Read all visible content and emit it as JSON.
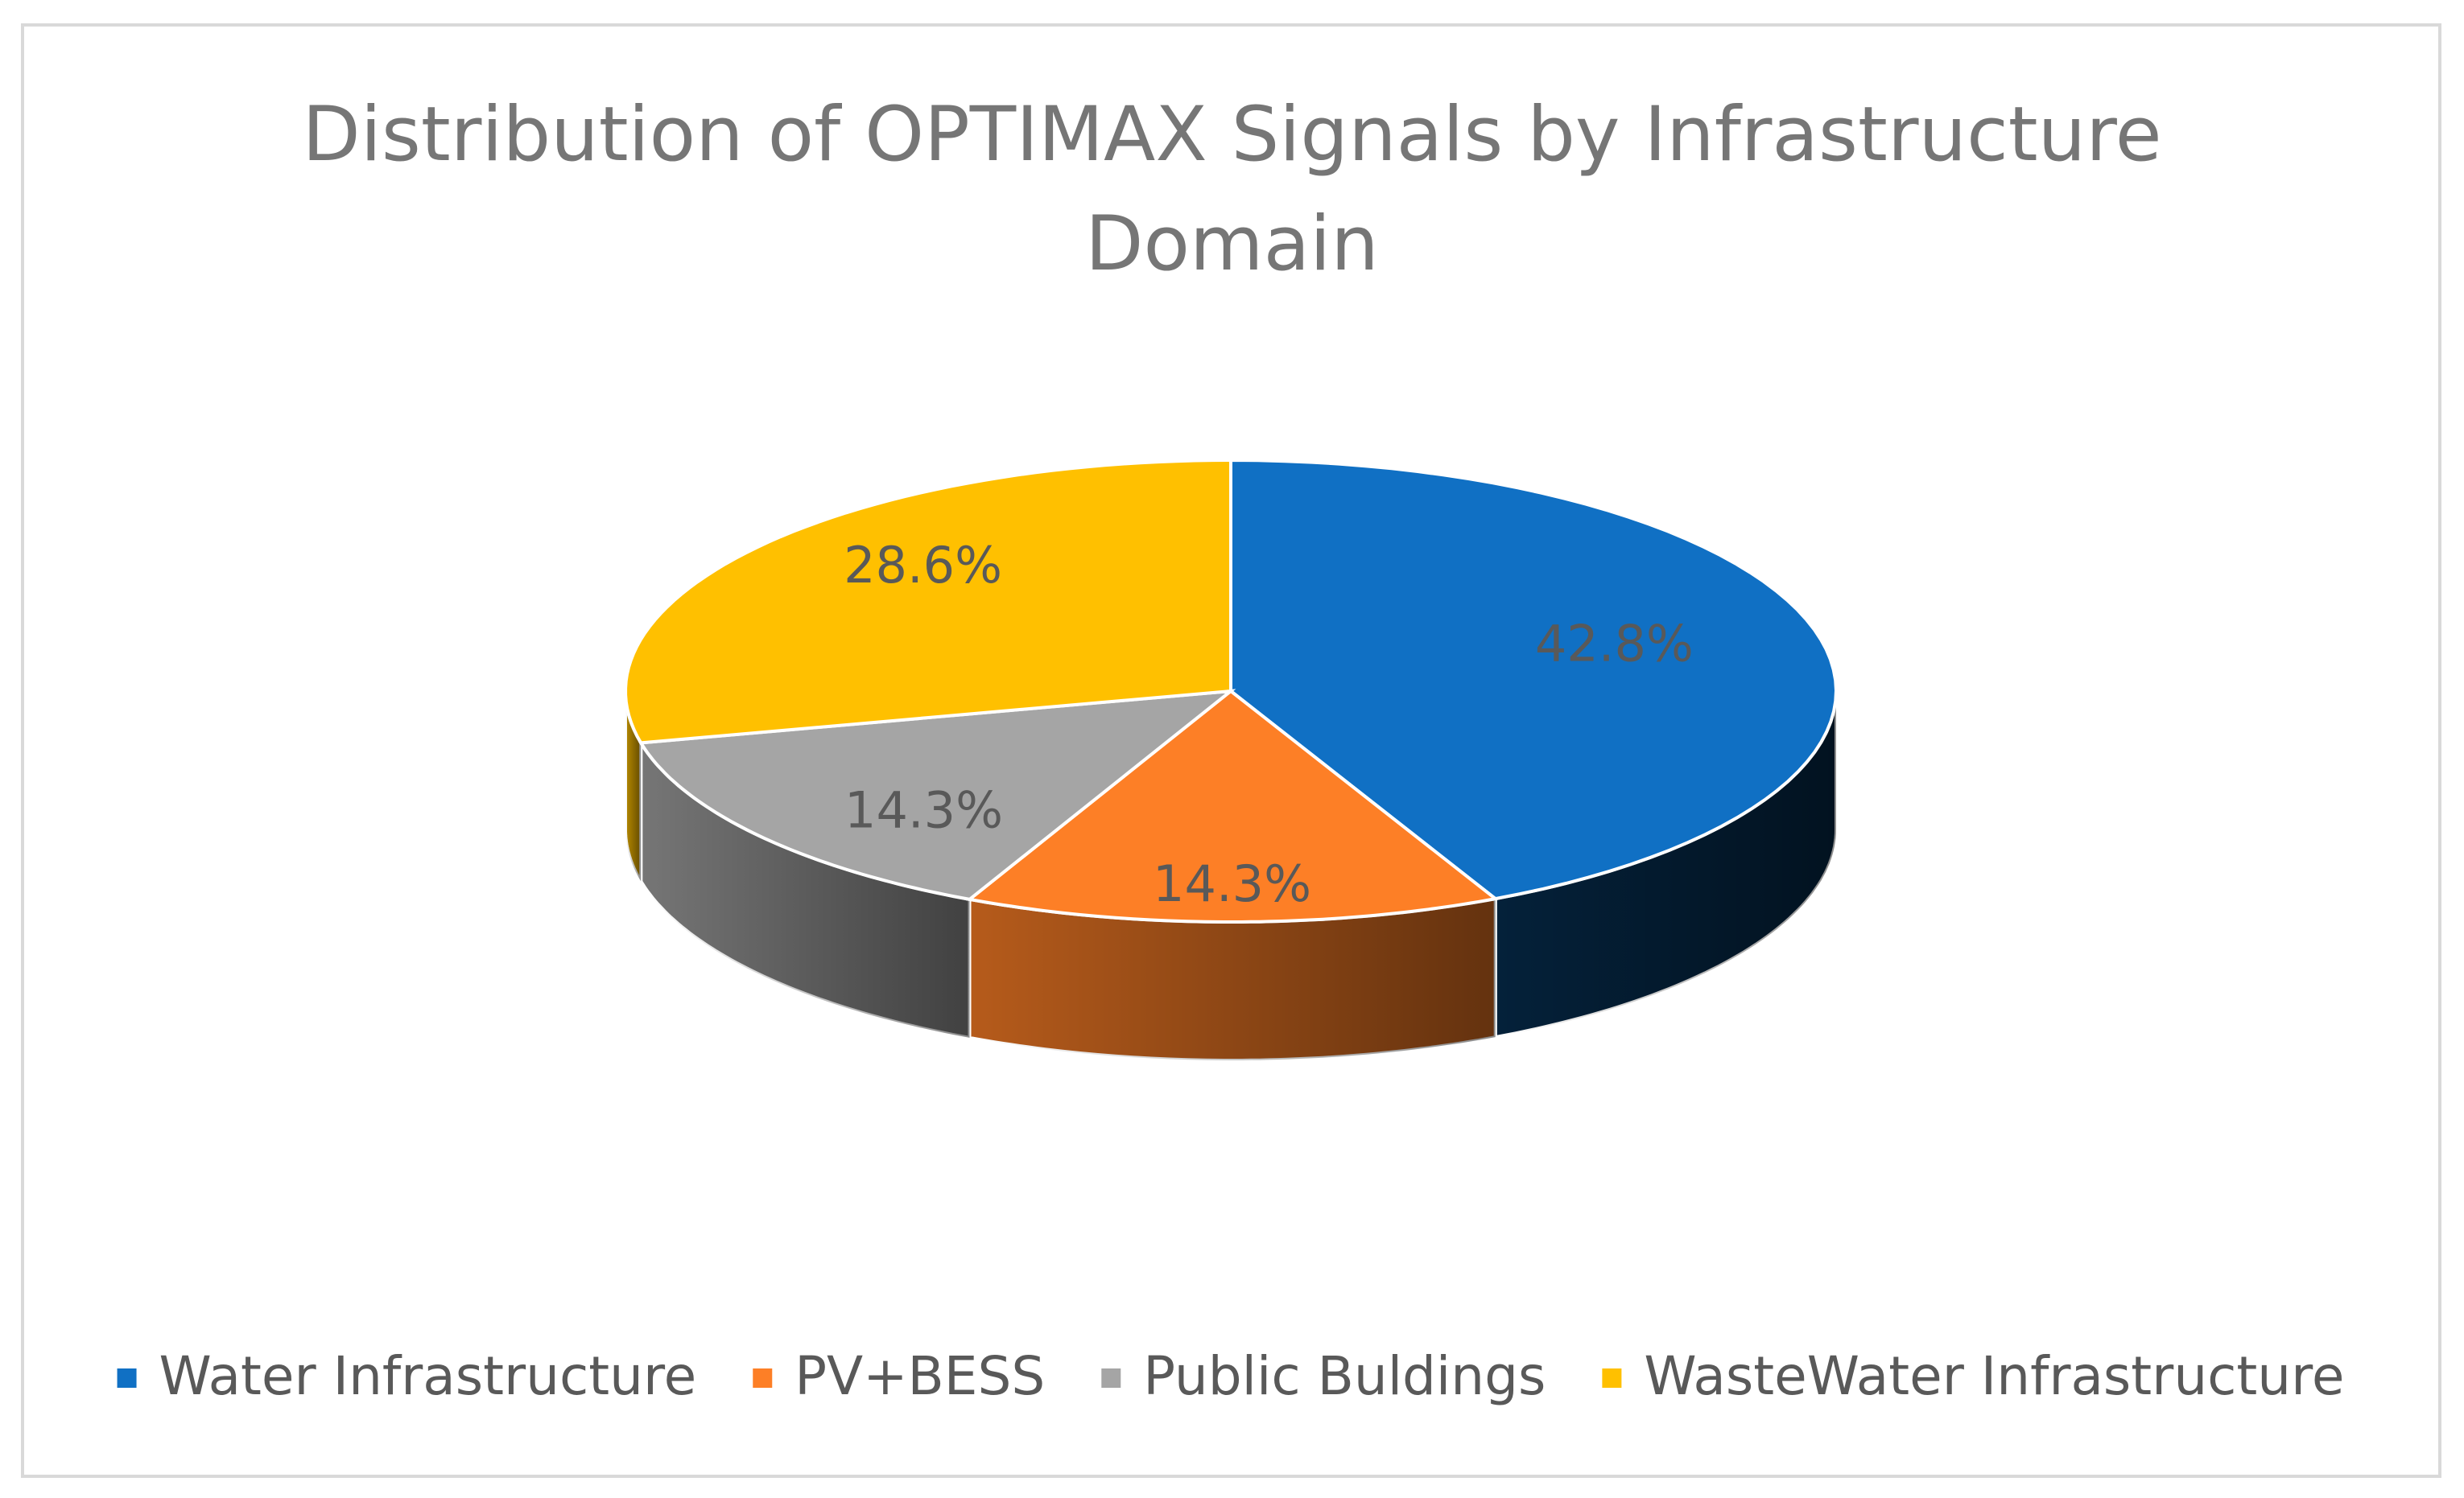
{
  "chart_data": {
    "type": "pie",
    "title": "Distribution of OPTIMAX Signals by Infrastructure Domain",
    "categories": [
      "Water Infrastructure",
      "PV+BESS",
      "Public Buldings",
      "WasteWater Infrastructure"
    ],
    "values": [
      42.8,
      14.3,
      14.3,
      28.6
    ],
    "value_labels": [
      "42.8%",
      "14.3%",
      "14.3%",
      "28.6%"
    ],
    "colors": [
      "#1070c4",
      "#fd7f26",
      "#a5a5a5",
      "#ffc000"
    ],
    "legend": "bottom"
  }
}
